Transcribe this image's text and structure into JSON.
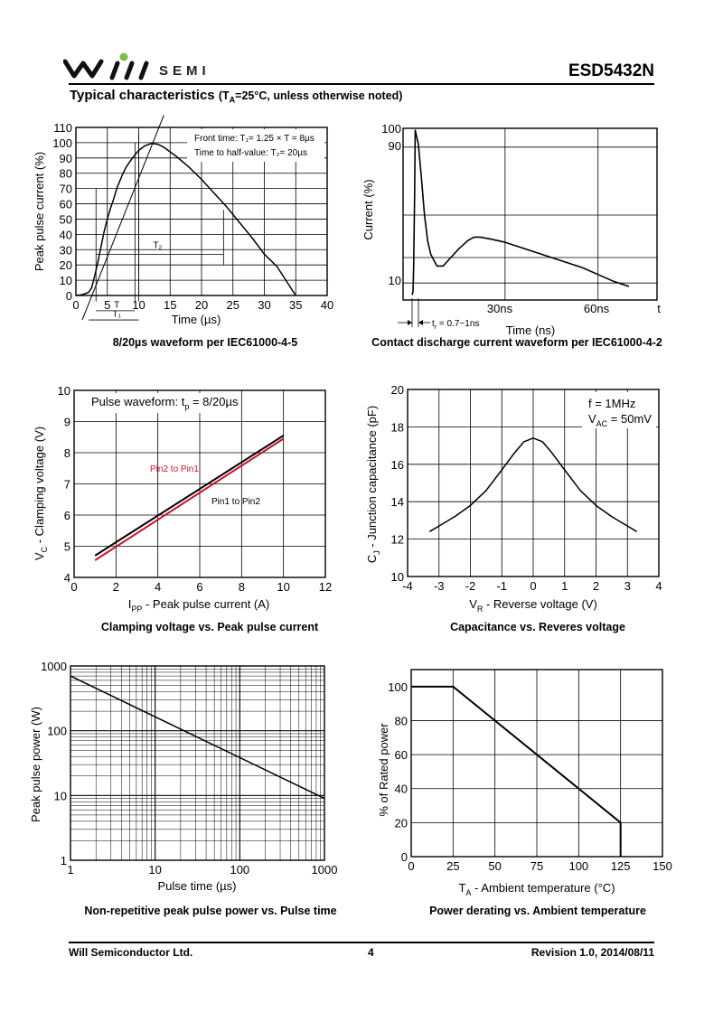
{
  "header": {
    "brand": "SEMI",
    "part_number": "ESD5432N"
  },
  "section": {
    "title": "Typical characteristics",
    "condition_pre": "(T",
    "condition_sub": "A",
    "condition_post": "=25°C, unless otherwise noted)"
  },
  "footer": {
    "company": "Will Semiconductor Ltd.",
    "page": "4",
    "revision": "Revision 1.0, 2014/08/11"
  },
  "colors": {
    "red_series": "#c8102e",
    "line": "#000000"
  },
  "chart_data": [
    {
      "type": "line",
      "caption": "8/20µs waveform per IEC61000-4-5",
      "ylabel": "Peak pulse current (%)",
      "xlabel": "Time (µs)",
      "xlim": [
        0,
        40
      ],
      "ylim": [
        0,
        110
      ],
      "x_ticks": [
        "0",
        "5",
        "10",
        "15",
        "20",
        "25",
        "30",
        "35",
        "40"
      ],
      "y_ticks": [
        "0",
        "10",
        "20",
        "30",
        "40",
        "50",
        "60",
        "70",
        "80",
        "90",
        "100",
        "110"
      ],
      "annotation_front": "Front time: T₁= 1.25 × T = 8µs",
      "annotation_half": "Time to half-value: T₂= 20µs",
      "marker_T": "T",
      "marker_T1": "T₁",
      "marker_T2": "T₂",
      "series": [
        {
          "x": [
            0,
            1,
            2,
            2.5,
            3,
            3.5,
            4,
            4.5,
            5,
            5.5,
            6,
            6.5,
            7,
            7.5,
            8,
            9,
            10,
            11,
            12,
            13,
            14,
            16,
            18,
            20,
            22,
            24,
            26,
            28,
            30,
            32,
            35
          ],
          "y": [
            0,
            0.5,
            2,
            5,
            13,
            22,
            32,
            42,
            50,
            57,
            63,
            70,
            75,
            80,
            84,
            90,
            95,
            98,
            99.5,
            99,
            97,
            91,
            84,
            76,
            67,
            58,
            48,
            38,
            27,
            19,
            0
          ]
        }
      ]
    },
    {
      "type": "line",
      "caption": "Contact discharge current waveform per IEC61000-4-2",
      "ylabel": "Current (%)",
      "xlabel": "Time (ns)",
      "x_tick_labels": [
        "30ns",
        "60ns",
        "t"
      ],
      "y_tick_labels": [
        "100",
        "90",
        "10"
      ],
      "rise_label": "t",
      "rise_sub": "r",
      "rise_value": " = 0.7~1ns",
      "series": [
        {
          "x": [
            0,
            0.3,
            0.5,
            0.8,
            1,
            2,
            3,
            4,
            5,
            6,
            8,
            10,
            12,
            15,
            18,
            20,
            22,
            25,
            30,
            35,
            40,
            45,
            50,
            55,
            60,
            65,
            70
          ],
          "y": [
            3,
            5,
            20,
            60,
            100,
            92,
            72,
            50,
            35,
            27,
            20,
            20,
            24,
            30,
            35,
            37,
            37,
            36,
            34,
            31,
            28,
            25,
            22,
            19,
            15,
            11,
            8
          ]
        }
      ]
    },
    {
      "type": "line",
      "caption": "Clamping voltage vs. Peak pulse current",
      "ylabel_main": "V",
      "ylabel_sub": "C",
      "ylabel_rest": " - Clamping voltage (V)",
      "xlabel_main": "I",
      "xlabel_sub": "PP",
      "xlabel_rest": " - Peak pulse current (A)",
      "xlim": [
        0,
        12
      ],
      "ylim": [
        4,
        10
      ],
      "x_ticks": [
        "0",
        "2",
        "4",
        "6",
        "8",
        "10",
        "12"
      ],
      "y_ticks": [
        "4",
        "5",
        "6",
        "7",
        "8",
        "9",
        "10"
      ],
      "note_main": "Pulse waveform: t",
      "note_sub": "p",
      "note_rest": " = 8/20µs",
      "series": [
        {
          "name": "Pin2 to Pin1",
          "x": [
            1,
            10
          ],
          "y": [
            4.55,
            8.45
          ]
        },
        {
          "name": "Pin1 to Pin2",
          "x": [
            1,
            10
          ],
          "y": [
            4.7,
            8.55
          ]
        }
      ]
    },
    {
      "type": "line",
      "caption": "Capacitance vs. Reveres voltage",
      "ylabel_main": "C",
      "ylabel_sub": "J",
      "ylabel_rest": " - Junction capacitance (pF)",
      "xlabel_main": "V",
      "xlabel_sub": "R",
      "xlabel_rest": " - Reverse voltage (V)",
      "xlim": [
        -4,
        4
      ],
      "ylim": [
        10,
        20
      ],
      "x_ticks": [
        "-4",
        "-3",
        "-2",
        "-1",
        "0",
        "1",
        "2",
        "3",
        "4"
      ],
      "y_ticks": [
        "10",
        "12",
        "14",
        "16",
        "18",
        "20"
      ],
      "note1": "f = 1MHz",
      "note2_main": "V",
      "note2_sub": "AC",
      "note2_rest": " = 50mV",
      "series": [
        {
          "x": [
            -3.3,
            -3,
            -2.5,
            -2,
            -1.5,
            -1,
            -0.6,
            -0.3,
            0,
            0.3,
            0.6,
            1,
            1.5,
            2,
            2.5,
            3,
            3.3
          ],
          "y": [
            12.4,
            12.7,
            13.2,
            13.8,
            14.6,
            15.7,
            16.6,
            17.2,
            17.4,
            17.2,
            16.6,
            15.7,
            14.6,
            13.8,
            13.2,
            12.7,
            12.4
          ]
        }
      ]
    },
    {
      "type": "line",
      "scale": "log-log",
      "caption": "Non-repetitive peak pulse power vs. Pulse time",
      "ylabel": "Peak pulse power (W)",
      "xlabel": "Pulse time (µs)",
      "xlim": [
        1,
        1000
      ],
      "ylim": [
        1,
        1000
      ],
      "x_ticks": [
        "1",
        "10",
        "100",
        "1000"
      ],
      "y_ticks": [
        "1",
        "10",
        "100",
        "1000"
      ],
      "series": [
        {
          "x": [
            1,
            1000
          ],
          "y": [
            700,
            9
          ]
        }
      ]
    },
    {
      "type": "line",
      "caption": "Power derating vs. Ambient temperature",
      "ylabel": "% of Rated power",
      "xlabel_main": "T",
      "xlabel_sub": "A",
      "xlabel_rest": " - Ambient temperature (°C)",
      "xlim": [
        0,
        150
      ],
      "ylim": [
        0,
        110
      ],
      "x_ticks": [
        "0",
        "25",
        "50",
        "75",
        "100",
        "125",
        "150"
      ],
      "y_ticks": [
        "0",
        "20",
        "40",
        "60",
        "80",
        "100"
      ],
      "series": [
        {
          "x": [
            0,
            25,
            125,
            125
          ],
          "y": [
            100,
            100,
            20,
            0
          ]
        }
      ]
    }
  ]
}
